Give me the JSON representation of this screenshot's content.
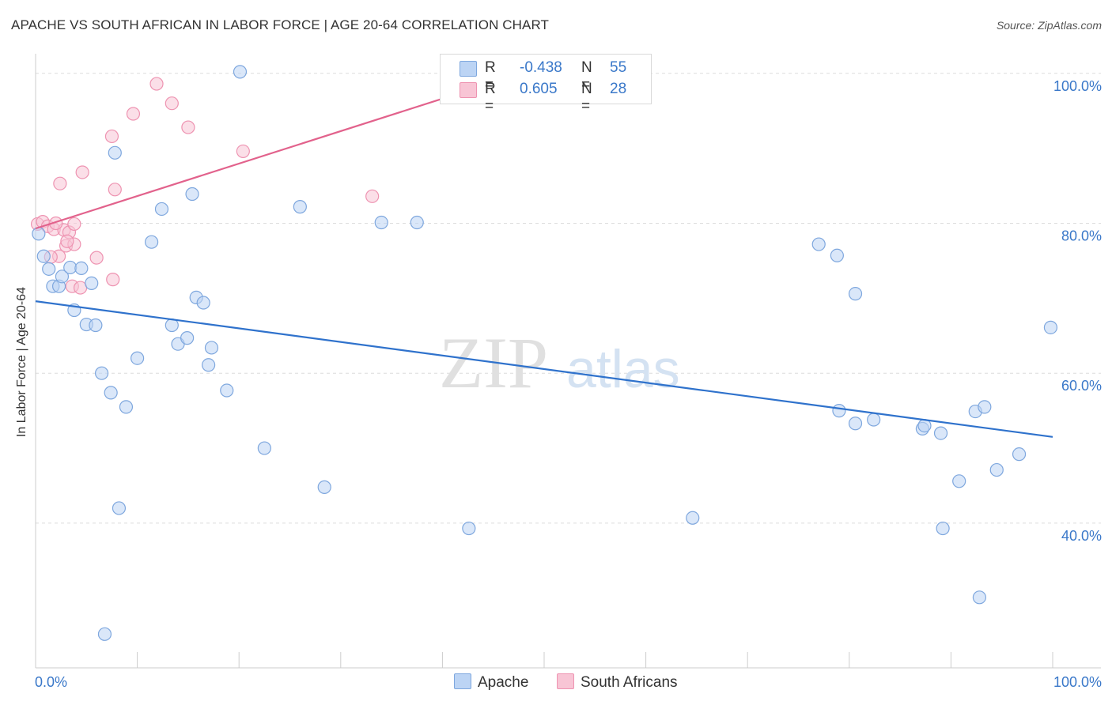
{
  "title": "APACHE VS SOUTH AFRICAN IN LABOR FORCE | AGE 20-64 CORRELATION CHART",
  "source": "Source: ZipAtlas.com",
  "watermark": {
    "zip": "ZIP",
    "atlas": "atlas"
  },
  "colors": {
    "apache_fill": "#bcd4f4",
    "apache_stroke": "#7ea7de",
    "apache_line": "#2f72cc",
    "sa_fill": "#f8c5d5",
    "sa_stroke": "#ee93b1",
    "sa_line": "#e2628c",
    "tick_label": "#3a78c9"
  },
  "legend": {
    "apache": {
      "r_label": "R =",
      "r_value": "-0.438",
      "n_label": "N =",
      "n_value": "55"
    },
    "south_africans": {
      "r_label": "R =",
      "r_value": "0.605",
      "n_label": "N =",
      "n_value": "28"
    }
  },
  "chart_data": {
    "type": "scatter",
    "title": "APACHE VS SOUTH AFRICAN IN LABOR FORCE | AGE 20-64 CORRELATION CHART",
    "xlabel": "",
    "ylabel": "In Labor Force | Age 20-64",
    "xlim": [
      0,
      100
    ],
    "ylim": [
      20.7,
      102.4
    ],
    "x_tick_labels": [
      "0.0%",
      "100.0%"
    ],
    "y_ticks": [
      40,
      60,
      80,
      100
    ],
    "y_tick_labels": [
      "40.0%",
      "60.0%",
      "80.0%",
      "100.0%"
    ],
    "grid": "horizontal dashed",
    "legend_position": "top-center",
    "series": [
      {
        "name": "Apache",
        "points": [
          [
            0.3,
            78.6
          ],
          [
            0.8,
            75.6
          ],
          [
            1.3,
            73.9
          ],
          [
            1.7,
            71.6
          ],
          [
            2.3,
            71.6
          ],
          [
            2.6,
            72.9
          ],
          [
            3.4,
            74.1
          ],
          [
            3.8,
            68.4
          ],
          [
            4.5,
            74.0
          ],
          [
            5.0,
            66.5
          ],
          [
            5.5,
            72.0
          ],
          [
            5.9,
            66.4
          ],
          [
            6.5,
            60.0
          ],
          [
            7.4,
            57.4
          ],
          [
            7.8,
            89.4
          ],
          [
            8.2,
            42.0
          ],
          [
            8.9,
            55.5
          ],
          [
            10.0,
            62.0
          ],
          [
            11.4,
            77.5
          ],
          [
            12.4,
            81.9
          ],
          [
            13.4,
            66.4
          ],
          [
            14.0,
            63.9
          ],
          [
            14.9,
            64.7
          ],
          [
            15.4,
            83.9
          ],
          [
            15.8,
            70.1
          ],
          [
            16.5,
            69.4
          ],
          [
            17.0,
            61.1
          ],
          [
            17.3,
            63.4
          ],
          [
            18.8,
            57.7
          ],
          [
            20.1,
            100.2
          ],
          [
            22.5,
            50.0
          ],
          [
            26.0,
            82.2
          ],
          [
            28.4,
            44.8
          ],
          [
            34.0,
            80.1
          ],
          [
            37.5,
            80.1
          ],
          [
            42.6,
            39.3
          ],
          [
            64.6,
            40.7
          ],
          [
            77.0,
            77.2
          ],
          [
            78.8,
            75.7
          ],
          [
            79.0,
            55.0
          ],
          [
            80.6,
            53.3
          ],
          [
            80.6,
            70.6
          ],
          [
            82.4,
            53.8
          ],
          [
            87.2,
            52.6
          ],
          [
            87.4,
            53.0
          ],
          [
            89.0,
            52.0
          ],
          [
            89.2,
            39.3
          ],
          [
            90.8,
            45.6
          ],
          [
            92.4,
            54.9
          ],
          [
            93.3,
            55.5
          ],
          [
            94.5,
            47.1
          ],
          [
            92.8,
            30.1
          ],
          [
            96.7,
            49.2
          ],
          [
            99.8,
            66.1
          ],
          [
            6.8,
            25.2
          ]
        ],
        "trend": {
          "x": [
            0,
            100
          ],
          "y": [
            69.6,
            51.5
          ]
        }
      },
      {
        "name": "South Africans",
        "points": [
          [
            0.2,
            79.9
          ],
          [
            0.7,
            80.2
          ],
          [
            1.2,
            79.6
          ],
          [
            1.8,
            79.2
          ],
          [
            2.3,
            75.6
          ],
          [
            2.4,
            85.3
          ],
          [
            2.8,
            79.1
          ],
          [
            3.0,
            77.0
          ],
          [
            3.3,
            78.8
          ],
          [
            3.6,
            71.6
          ],
          [
            3.8,
            77.2
          ],
          [
            3.8,
            79.9
          ],
          [
            4.4,
            71.4
          ],
          [
            4.6,
            86.8
          ],
          [
            6.0,
            75.4
          ],
          [
            7.5,
            91.6
          ],
          [
            7.6,
            72.5
          ],
          [
            7.8,
            84.5
          ],
          [
            9.6,
            94.6
          ],
          [
            11.9,
            98.6
          ],
          [
            13.4,
            96.0
          ],
          [
            15.0,
            92.8
          ],
          [
            20.4,
            89.6
          ],
          [
            33.1,
            83.6
          ],
          [
            51.9,
            100.3
          ],
          [
            1.5,
            75.5
          ],
          [
            2.0,
            80.0
          ],
          [
            3.1,
            77.6
          ]
        ],
        "trend": {
          "x": [
            0,
            48.5
          ],
          "y": [
            79.3,
            100.3
          ]
        }
      }
    ]
  }
}
